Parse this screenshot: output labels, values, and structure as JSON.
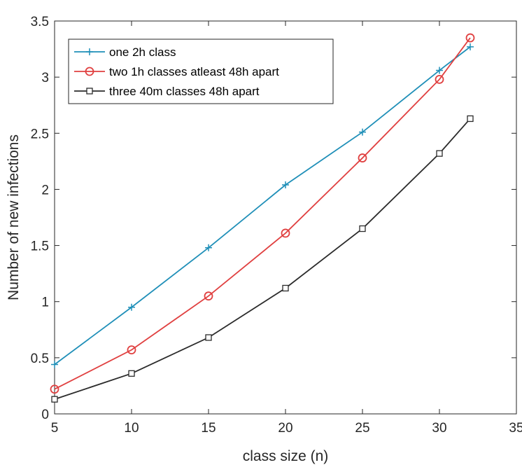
{
  "chart_data": {
    "type": "line",
    "title": "",
    "xlabel": "class size (n)",
    "ylabel": "Number of new infections",
    "xlim": [
      5,
      35
    ],
    "ylim": [
      0,
      3.5
    ],
    "xticks": [
      5,
      10,
      15,
      20,
      25,
      30,
      35
    ],
    "yticks": [
      0,
      0.5,
      1,
      1.5,
      2,
      2.5,
      3,
      3.5
    ],
    "xtick_labels": [
      "5",
      "10",
      "15",
      "20",
      "25",
      "30",
      "35"
    ],
    "ytick_labels": [
      "0",
      "0.5",
      "1",
      "1.5",
      "2",
      "2.5",
      "3",
      "3.5"
    ],
    "grid": false,
    "legend_position": "top-left",
    "x": [
      5,
      10,
      15,
      20,
      25,
      30,
      32
    ],
    "series": [
      {
        "name": "one 2h class",
        "values": [
          0.44,
          0.95,
          1.48,
          2.04,
          2.51,
          3.06,
          3.27
        ],
        "color": "#1f8fb8",
        "marker": "plus"
      },
      {
        "name": "two 1h classes atleast 48h apart",
        "values": [
          0.22,
          0.57,
          1.05,
          1.61,
          2.28,
          2.98,
          3.35
        ],
        "color": "#e04040",
        "marker": "circle"
      },
      {
        "name": "three 40m classes 48h apart",
        "values": [
          0.13,
          0.36,
          0.68,
          1.12,
          1.65,
          2.32,
          2.63
        ],
        "color": "#2b2b2b",
        "marker": "square"
      }
    ]
  }
}
